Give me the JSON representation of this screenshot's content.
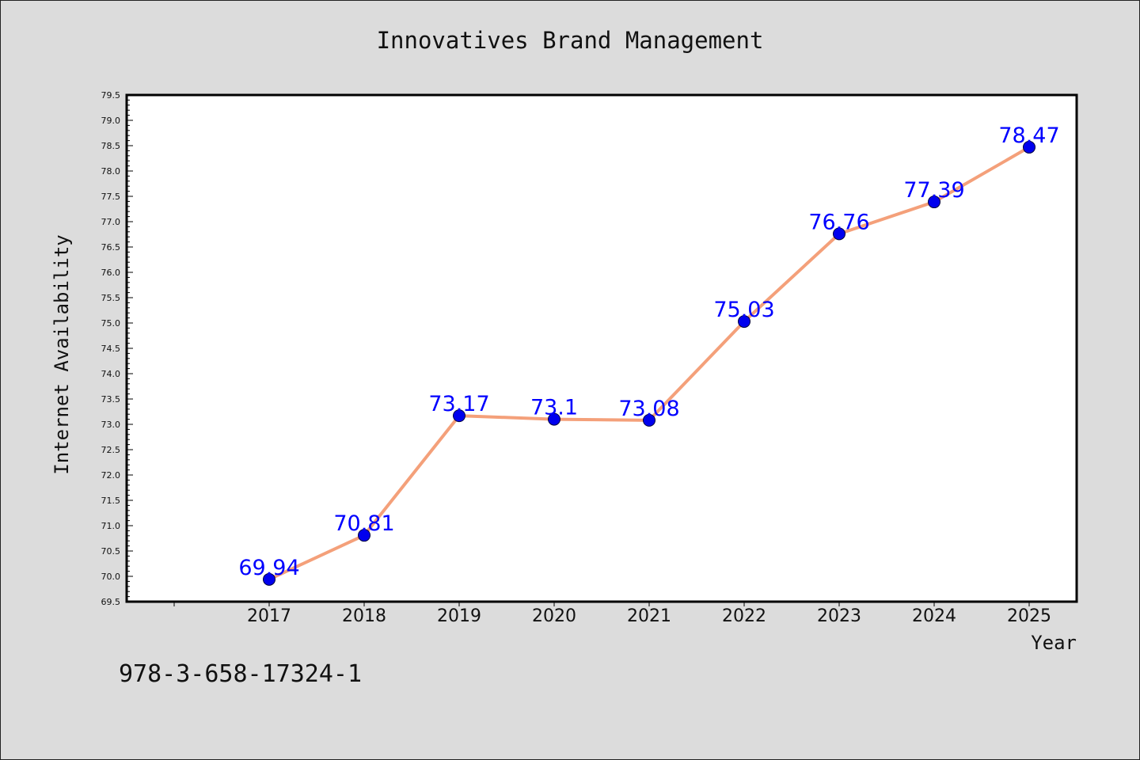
{
  "chart_data": {
    "type": "line",
    "title": "Innovatives Brand Management",
    "xlabel": "Year",
    "ylabel": "Internet Availability",
    "categories": [
      "2017",
      "2018",
      "2019",
      "2020",
      "2021",
      "2022",
      "2023",
      "2024",
      "2025"
    ],
    "values": [
      69.94,
      70.81,
      73.17,
      73.1,
      73.08,
      75.03,
      76.76,
      77.39,
      78.47
    ],
    "data_labels": [
      "69.94",
      "70.81",
      "73.17",
      "73.1",
      "73.08",
      "75.03",
      "76.76",
      "77.39",
      "78.47"
    ],
    "ylim": [
      69.5,
      79.5
    ],
    "yticks": [
      "69.5",
      "70.0",
      "70.5",
      "71.0",
      "71.5",
      "72.0",
      "72.5",
      "73.0",
      "73.5",
      "74.0",
      "74.5",
      "75.0",
      "75.5",
      "76.0",
      "76.5",
      "77.0",
      "77.5",
      "78.0",
      "78.5",
      "79.0",
      "79.5"
    ],
    "grid": false,
    "legend": "none",
    "colors": {
      "line": "#f4a07a",
      "marker": "#0000ee",
      "data_label": "#0000ff",
      "plot_background": "#ffffff",
      "figure_background": "#dcdcdc"
    }
  },
  "footer": {
    "code": "978-3-658-17324-1"
  }
}
